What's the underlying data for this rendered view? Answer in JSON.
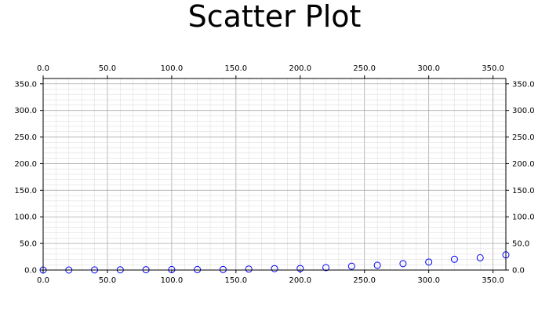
{
  "chart_data": {
    "type": "scatter",
    "title": "Scatter Plot",
    "xlabel": "",
    "ylabel": "",
    "xlim": [
      0,
      360
    ],
    "ylim": [
      0,
      360
    ],
    "x_ticks": [
      0,
      50,
      100,
      150,
      200,
      250,
      300,
      350
    ],
    "y_ticks": [
      0,
      50,
      100,
      150,
      200,
      250,
      300,
      350
    ],
    "x_tick_labels": [
      "0.0",
      "50.0",
      "100.0",
      "150.0",
      "200.0",
      "250.0",
      "300.0",
      "350.0"
    ],
    "y_tick_labels": [
      "0.0",
      "50.0",
      "100.0",
      "150.0",
      "200.0",
      "250.0",
      "300.0",
      "350.0"
    ],
    "minor_divisions": 5,
    "grid": true,
    "marker": "open-circle",
    "series": [
      {
        "name": "",
        "color": "#0000ff",
        "x": [
          0,
          20,
          40,
          60,
          80,
          100,
          120,
          140,
          160,
          180,
          200,
          220,
          240,
          260,
          280,
          300,
          320,
          340,
          360
        ],
        "y": [
          0.0,
          0.0,
          0.2,
          0.4,
          0.6,
          0.9,
          0.9,
          1.0,
          1.8,
          2.6,
          2.8,
          4.6,
          7.2,
          9.0,
          12.0,
          15.0,
          20.2,
          23.0,
          28.5
        ]
      }
    ]
  }
}
